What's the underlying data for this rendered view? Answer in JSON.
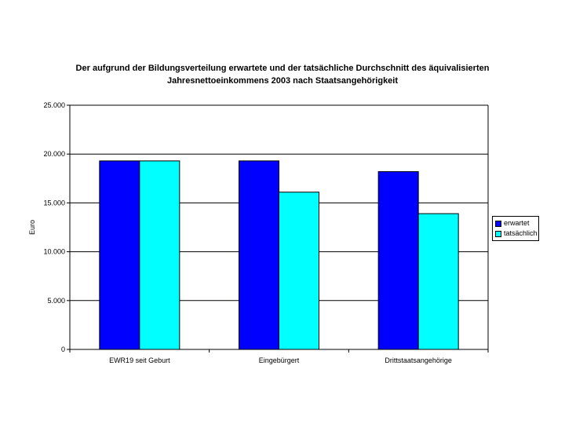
{
  "chart_data": {
    "type": "bar",
    "title_lines": [
      "Der aufgrund der Bildungsverteilung erwartete und der tatsächliche Durchschnitt des äquivalisierten",
      "Jahresnettoeinkommens 2003 nach Staatsangehörigkeit"
    ],
    "xlabel": "",
    "ylabel": "Euro",
    "categories": [
      "EWR19 seit Geburt",
      "Eingebürgert",
      "Drittstaatsangehörige"
    ],
    "series": [
      {
        "name": "erwartet",
        "color": "#0000FF",
        "values": [
          19300,
          19300,
          18200
        ]
      },
      {
        "name": "tatsächlich",
        "color": "#00FFFF",
        "values": [
          19300,
          16100,
          13900
        ]
      }
    ],
    "ylim": [
      0,
      25000
    ],
    "yticks": [
      0,
      5000,
      10000,
      15000,
      20000,
      25000
    ],
    "ytick_labels": [
      "0",
      "5.000",
      "10.000",
      "15.000",
      "20.000",
      "25.000"
    ],
    "grid": true,
    "legend_position": "right"
  }
}
